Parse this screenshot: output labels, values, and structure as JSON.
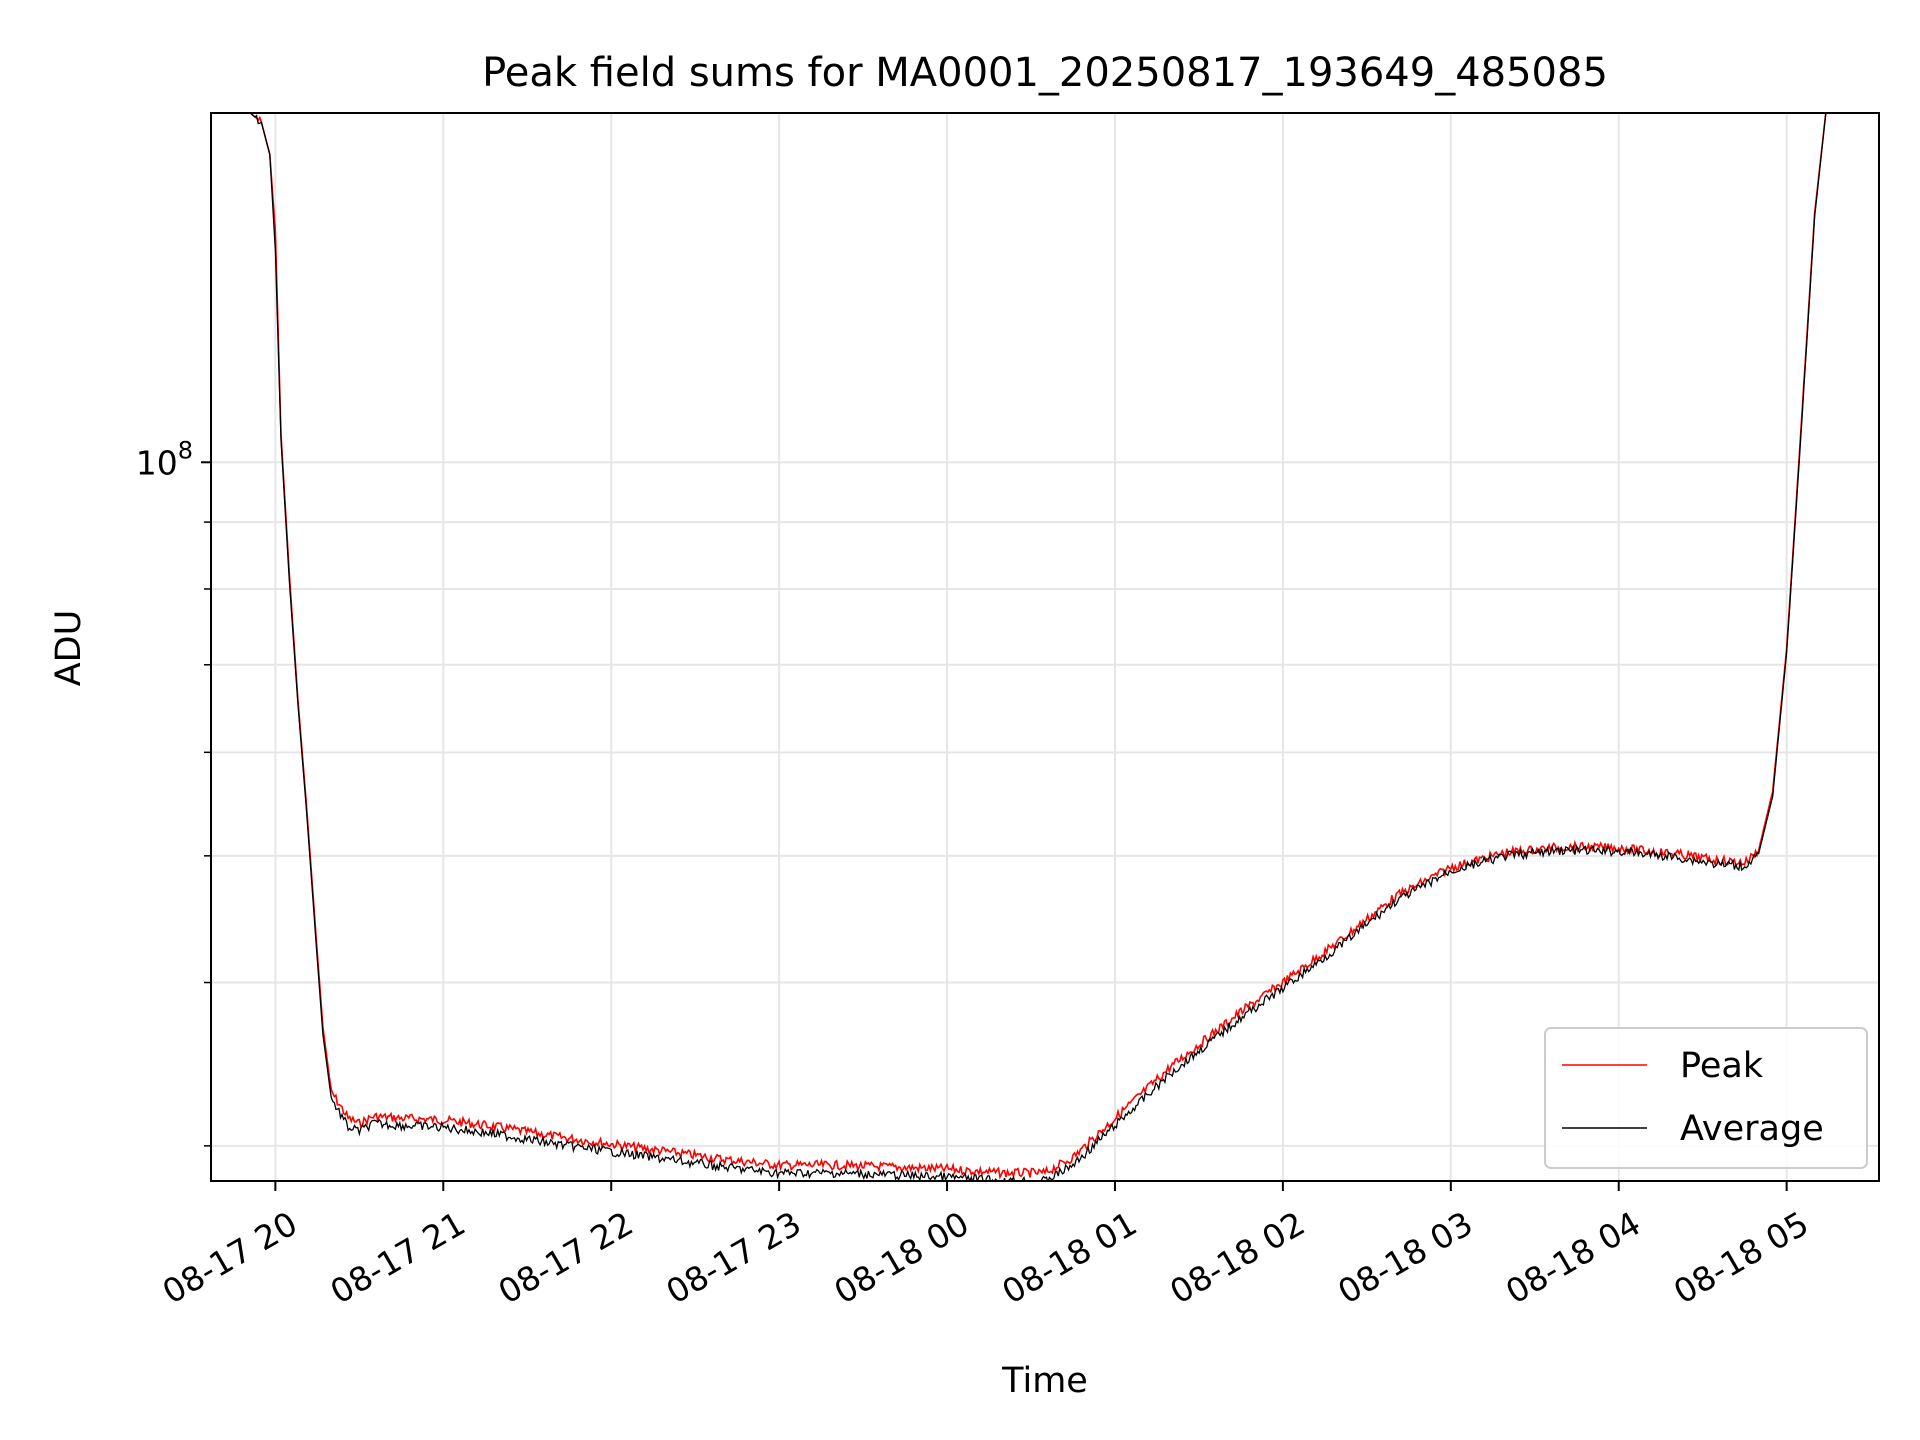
{
  "chart_data": {
    "type": "line",
    "title": "Peak field sums for MA0001_20250817_193649_485085",
    "xlabel": "Time",
    "ylabel": "ADU",
    "y_scale": "log",
    "ytick_labels": [
      {
        "base": "10",
        "exp": "8",
        "value": 100000000
      }
    ],
    "xticks": [
      "2025-08-17 20:00",
      "2025-08-17 21:00",
      "2025-08-17 22:00",
      "2025-08-17 23:00",
      "2025-08-18 00:00",
      "2025-08-18 01:00",
      "2025-08-18 02:00",
      "2025-08-18 03:00",
      "2025-08-18 04:00",
      "2025-08-18 05:00"
    ],
    "xtick_labels": [
      "08-17 20",
      "08-17 21",
      "08-17 22",
      "08-17 23",
      "08-18 00",
      "08-18 01",
      "08-18 02",
      "08-18 03",
      "08-18 04",
      "08-18 05"
    ],
    "xlim": [
      "2025-08-17 19:37",
      "2025-08-18 05:33"
    ],
    "ylim": [
      28200000,
      185000000
    ],
    "grid": true,
    "legend_position": "lower right",
    "series": [
      {
        "name": "Peak",
        "color": "#ff0000",
        "x": [
          "2025-08-17 19:37",
          "2025-08-17 19:51",
          "2025-08-17 19:55",
          "2025-08-17 19:58",
          "2025-08-17 20:00",
          "2025-08-17 20:02",
          "2025-08-17 20:05",
          "2025-08-17 20:08",
          "2025-08-17 20:11",
          "2025-08-17 20:14",
          "2025-08-17 20:17",
          "2025-08-17 20:20",
          "2025-08-17 20:26",
          "2025-08-17 20:30",
          "2025-08-17 20:35",
          "2025-08-17 20:45",
          "2025-08-17 21:00",
          "2025-08-17 21:20",
          "2025-08-17 21:40",
          "2025-08-17 22:00",
          "2025-08-17 22:20",
          "2025-08-17 22:40",
          "2025-08-17 23:00",
          "2025-08-17 23:20",
          "2025-08-17 23:40",
          "2025-08-18 00:00",
          "2025-08-18 00:20",
          "2025-08-18 00:35",
          "2025-08-18 00:45",
          "2025-08-18 01:00",
          "2025-08-18 01:20",
          "2025-08-18 01:45",
          "2025-08-18 02:00",
          "2025-08-18 02:20",
          "2025-08-18 02:40",
          "2025-08-18 03:00",
          "2025-08-18 03:20",
          "2025-08-18 03:40",
          "2025-08-18 04:00",
          "2025-08-18 04:20",
          "2025-08-18 04:35",
          "2025-08-18 04:45",
          "2025-08-18 04:50",
          "2025-08-18 04:55",
          "2025-08-18 05:00",
          "2025-08-18 05:05",
          "2025-08-18 05:10",
          "2025-08-18 05:14",
          "2025-08-18 05:33"
        ],
        "y": [
          185000000,
          185000000,
          182000000,
          172000000,
          150000000,
          105000000,
          82000000,
          66000000,
          55000000,
          45000000,
          37000000,
          33000000,
          31500000,
          31200000,
          31600000,
          31500000,
          31400000,
          31000000,
          30500000,
          30100000,
          29700000,
          29300000,
          29000000,
          29000000,
          28900000,
          28800000,
          28600000,
          28600000,
          29400000,
          31500000,
          34500000,
          38000000,
          40000000,
          43000000,
          46500000,
          49000000,
          50300000,
          50800000,
          50700000,
          50200000,
          49600000,
          49400000,
          50500000,
          56000000,
          72000000,
          105000000,
          155000000,
          185000000,
          185000000
        ]
      },
      {
        "name": "Average",
        "color": "#000000",
        "x": [
          "2025-08-17 19:37",
          "2025-08-17 19:51",
          "2025-08-17 19:55",
          "2025-08-17 19:58",
          "2025-08-17 20:00",
          "2025-08-17 20:02",
          "2025-08-17 20:05",
          "2025-08-17 20:08",
          "2025-08-17 20:11",
          "2025-08-17 20:14",
          "2025-08-17 20:17",
          "2025-08-17 20:20",
          "2025-08-17 20:26",
          "2025-08-17 20:30",
          "2025-08-17 20:35",
          "2025-08-17 20:45",
          "2025-08-17 21:00",
          "2025-08-17 21:20",
          "2025-08-17 21:40",
          "2025-08-17 22:00",
          "2025-08-17 22:20",
          "2025-08-17 22:40",
          "2025-08-17 23:00",
          "2025-08-17 23:20",
          "2025-08-17 23:40",
          "2025-08-18 00:00",
          "2025-08-18 00:20",
          "2025-08-18 00:35",
          "2025-08-18 00:45",
          "2025-08-18 01:00",
          "2025-08-18 01:20",
          "2025-08-18 01:45",
          "2025-08-18 02:00",
          "2025-08-18 02:20",
          "2025-08-18 02:40",
          "2025-08-18 03:00",
          "2025-08-18 03:20",
          "2025-08-18 03:40",
          "2025-08-18 04:00",
          "2025-08-18 04:20",
          "2025-08-18 04:35",
          "2025-08-18 04:45",
          "2025-08-18 04:50",
          "2025-08-18 04:55",
          "2025-08-18 05:00",
          "2025-08-18 05:05",
          "2025-08-18 05:10",
          "2025-08-18 05:14",
          "2025-08-18 05:33"
        ],
        "y": [
          185000000,
          185000000,
          182000000,
          172000000,
          145000000,
          104000000,
          81000000,
          65500000,
          54500000,
          44500000,
          36500000,
          32600000,
          31000000,
          30800000,
          31200000,
          31100000,
          31000000,
          30600000,
          30100000,
          29700000,
          29300000,
          28900000,
          28600000,
          28600000,
          28500000,
          28400000,
          28200000,
          28200000,
          29000000,
          31100000,
          34100000,
          37600000,
          39600000,
          42600000,
          46100000,
          48700000,
          50000000,
          50500000,
          50400000,
          49900000,
          49300000,
          49100000,
          50200000,
          55500000,
          71500000,
          104000000,
          154000000,
          185000000,
          185000000
        ]
      }
    ]
  }
}
